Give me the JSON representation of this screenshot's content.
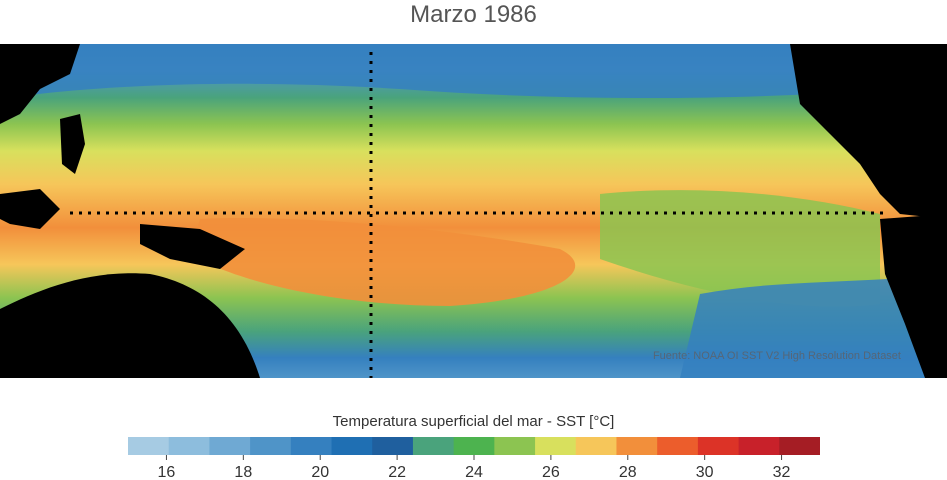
{
  "title": "Marzo 1986",
  "source": "Fuente: NOAA OI SST V2 High Resolution Dataset",
  "colorbar": {
    "title": "Temperatura superficial del mar - SST  [°C]",
    "min": 15,
    "max": 33,
    "tick_values": [
      16,
      18,
      20,
      22,
      24,
      26,
      28,
      30,
      32
    ],
    "tick_labels": [
      "16",
      "18",
      "20",
      "22",
      "24",
      "26",
      "28",
      "30",
      "32"
    ],
    "colors": [
      "#a6cbe3",
      "#8dbddd",
      "#6fa9d3",
      "#4f94c8",
      "#3580bf",
      "#1f6fb3",
      "#1f5f9e",
      "#4aa37c",
      "#4db34f",
      "#8cc451",
      "#d8e05d",
      "#f6c65a",
      "#f28f3b",
      "#ec5d2c",
      "#dc3327",
      "#c8212a",
      "#a51d24"
    ]
  },
  "map": {
    "region": "Pacífico tropical",
    "reference_lines": [
      "ecuador",
      "180°"
    ]
  }
}
